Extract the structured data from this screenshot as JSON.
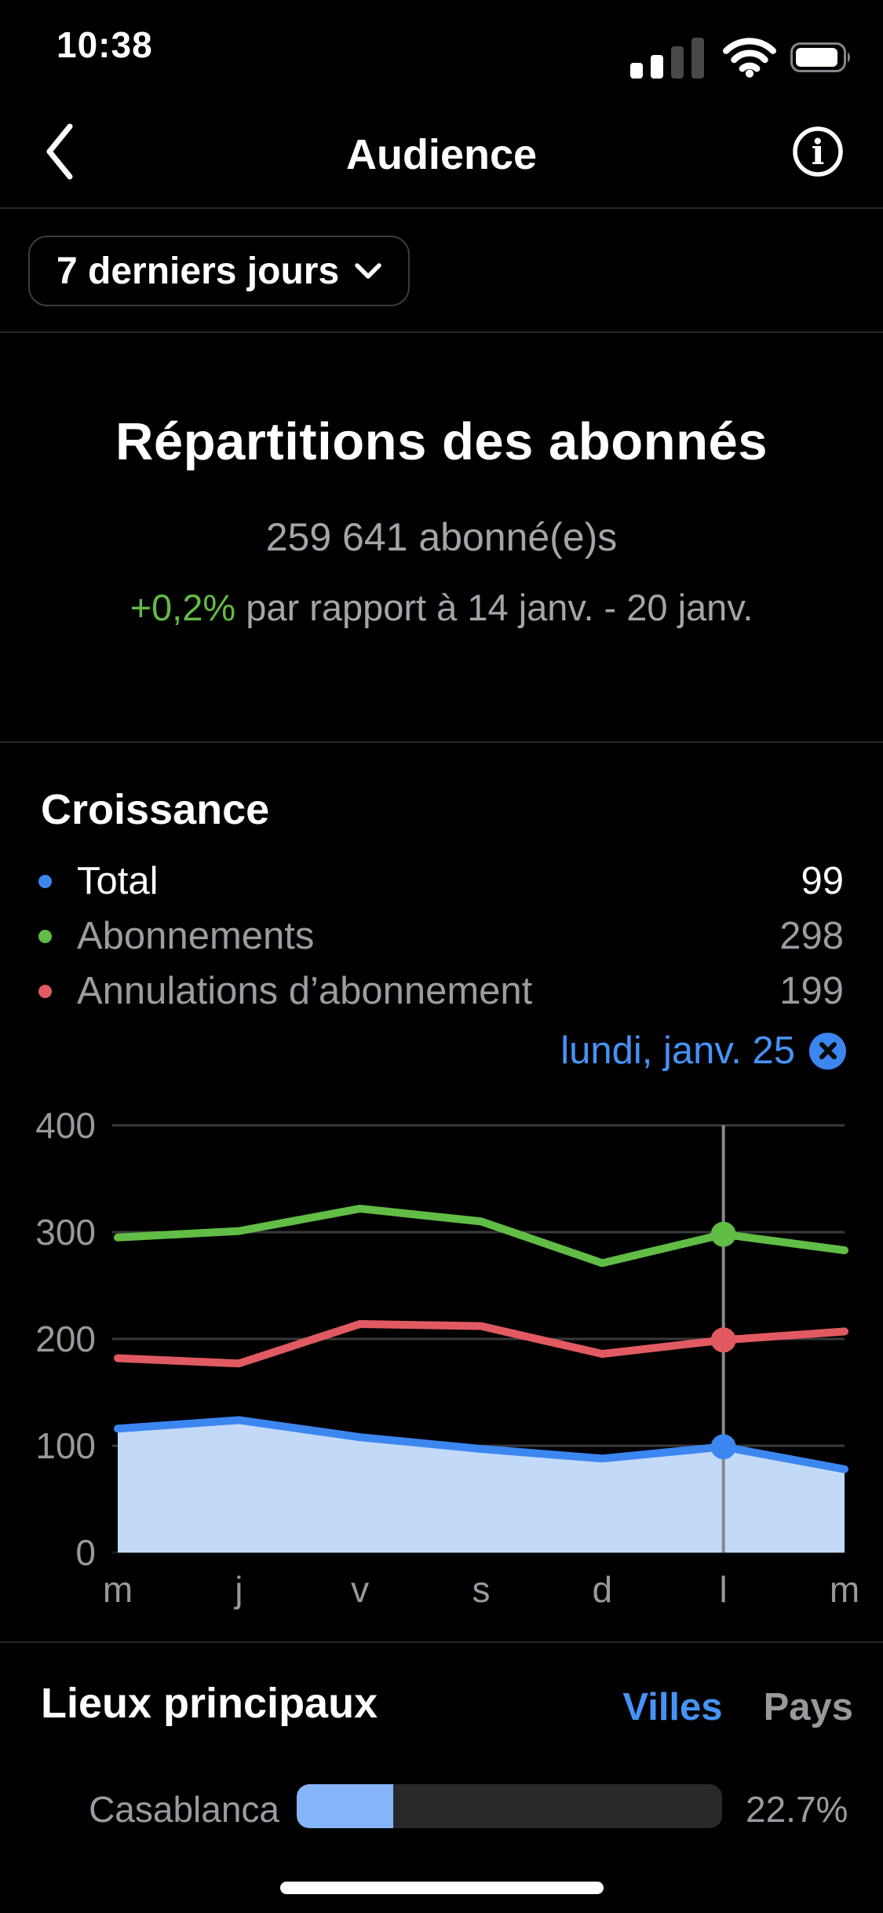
{
  "status_bar": {
    "time": "10:38"
  },
  "header": {
    "title": "Audience"
  },
  "filter": {
    "label": "7 derniers jours"
  },
  "hero": {
    "title": "Répartitions des abonnés",
    "subtitle": "259 641 abonné(e)s",
    "delta": "+0,2%",
    "delta_suffix": " par rapport à 14 janv. - 20 janv."
  },
  "croissance": {
    "title": "Croissance",
    "legend": [
      {
        "label": "Total",
        "value": "99",
        "color": "#3c86f0"
      },
      {
        "label": "Abonnements",
        "value": "298",
        "color": "#61bd45"
      },
      {
        "label": "Annulations d’abonnement",
        "value": "199",
        "color": "#e15a62"
      }
    ],
    "selected": {
      "label": "lundi, janv. 25"
    }
  },
  "chart_data": {
    "type": "area+line",
    "x": [
      "m",
      "j",
      "v",
      "s",
      "d",
      "l",
      "m"
    ],
    "series": [
      {
        "name": "Total",
        "color": "#3c86f0",
        "fill": "#c3d9f8",
        "area": true,
        "values": [
          116,
          124,
          108,
          97,
          88,
          99,
          78
        ]
      },
      {
        "name": "Abonnements",
        "color": "#61bd45",
        "values": [
          295,
          301,
          322,
          310,
          271,
          298,
          283
        ]
      },
      {
        "name": "Annulations d’abonnement",
        "color": "#e15a62",
        "values": [
          182,
          177,
          214,
          212,
          186,
          199,
          207
        ]
      }
    ],
    "yticks": [
      0,
      100,
      200,
      300,
      400
    ],
    "ylim": [
      0,
      400
    ],
    "grid": true,
    "selected_index": 5,
    "selected_label": "lundi, janv. 25"
  },
  "lieux": {
    "title": "Lieux principaux",
    "tabs": [
      {
        "label": "Villes",
        "active": true
      },
      {
        "label": "Pays",
        "active": false
      }
    ],
    "rows": [
      {
        "label": "Casablanca",
        "value": "22.7%",
        "percent": 22.7
      }
    ]
  },
  "colors": {
    "background": "#000000",
    "accent_blue": "#4693f6",
    "series_blue": "#3c86f0",
    "series_green": "#61bd45",
    "series_red": "#e15a62",
    "area_fill": "#c3d9f8",
    "delta_green": "#62bb46",
    "muted_text": "#98989d",
    "progress_fill": "#85b4f8",
    "progress_track": "#29292b",
    "divider": "#262626"
  }
}
